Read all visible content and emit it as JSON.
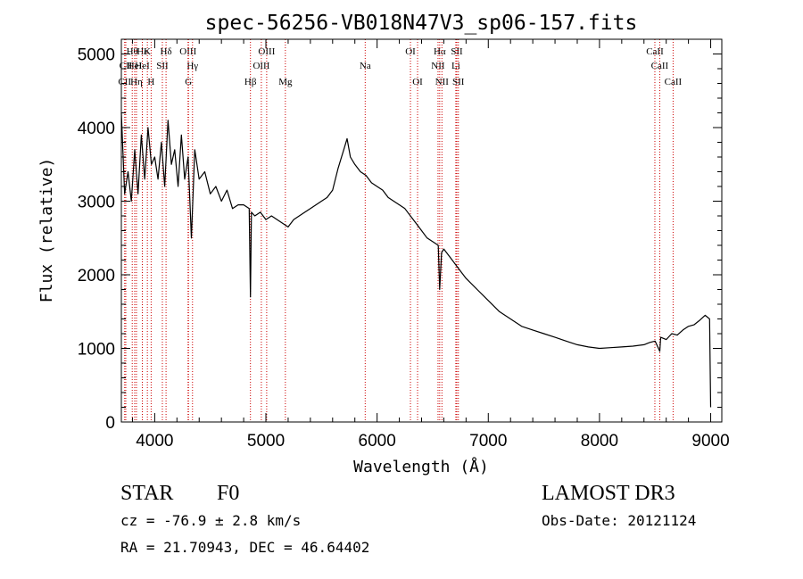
{
  "chart_data": {
    "type": "line",
    "title": "spec-56256-VB018N47V3_sp06-157.fits",
    "xlabel": "Wavelength (Å)",
    "ylabel": "Flux (relative)",
    "xlim": [
      3700,
      9100
    ],
    "ylim": [
      0,
      5200
    ],
    "xticks": [
      4000,
      5000,
      6000,
      7000,
      8000,
      9000
    ],
    "yticks": [
      0,
      1000,
      2000,
      3000,
      4000,
      5000
    ],
    "series": [
      {
        "name": "flux",
        "x": [
          3700,
          3730,
          3760,
          3790,
          3820,
          3850,
          3880,
          3910,
          3940,
          3970,
          4000,
          4030,
          4060,
          4090,
          4120,
          4150,
          4180,
          4210,
          4240,
          4270,
          4300,
          4330,
          4360,
          4400,
          4450,
          4500,
          4550,
          4600,
          4650,
          4700,
          4750,
          4800,
          4850,
          4861,
          4870,
          4900,
          4950,
          5000,
          5050,
          5100,
          5150,
          5200,
          5250,
          5300,
          5350,
          5400,
          5450,
          5500,
          5550,
          5600,
          5650,
          5700,
          5730,
          5760,
          5800,
          5850,
          5900,
          5950,
          6000,
          6050,
          6100,
          6150,
          6200,
          6250,
          6300,
          6350,
          6400,
          6450,
          6500,
          6550,
          6563,
          6580,
          6600,
          6650,
          6700,
          6750,
          6800,
          6900,
          7000,
          7100,
          7200,
          7300,
          7400,
          7500,
          7600,
          7700,
          7800,
          7900,
          8000,
          8100,
          8200,
          8300,
          8400,
          8450,
          8500,
          8542,
          8550,
          8600,
          8650,
          8700,
          8750,
          8800,
          8850,
          8900,
          8950,
          8990,
          9000
        ],
        "y": [
          4200,
          3100,
          3400,
          3000,
          3700,
          3100,
          3900,
          3300,
          4000,
          3500,
          3600,
          3300,
          3800,
          3200,
          4100,
          3500,
          3700,
          3200,
          3900,
          3300,
          3600,
          2500,
          3700,
          3300,
          3400,
          3100,
          3200,
          3000,
          3150,
          2900,
          2950,
          2950,
          2900,
          1700,
          2850,
          2800,
          2850,
          2750,
          2800,
          2750,
          2700,
          2650,
          2750,
          2800,
          2850,
          2900,
          2950,
          3000,
          3050,
          3150,
          3450,
          3700,
          3850,
          3600,
          3500,
          3400,
          3350,
          3250,
          3200,
          3150,
          3050,
          3000,
          2950,
          2900,
          2800,
          2700,
          2600,
          2500,
          2450,
          2400,
          1800,
          2300,
          2350,
          2250,
          2150,
          2050,
          1950,
          1800,
          1650,
          1500,
          1400,
          1300,
          1250,
          1200,
          1150,
          1100,
          1050,
          1020,
          1000,
          1010,
          1020,
          1030,
          1050,
          1080,
          1100,
          960,
          1150,
          1120,
          1200,
          1180,
          1250,
          1300,
          1320,
          1380,
          1450,
          1400,
          200
        ]
      }
    ],
    "line_markers": [
      {
        "label": "CII",
        "x": 3730,
        "row": 3
      },
      {
        "label": "CII",
        "x": 3740,
        "row": 2
      },
      {
        "label": "Hθ",
        "x": 3798,
        "row": 1
      },
      {
        "label": "HeI",
        "x": 3820,
        "row": 2
      },
      {
        "label": "Hη",
        "x": 3836,
        "row": 3
      },
      {
        "label": "Hε",
        "x": 3889,
        "row": 1
      },
      {
        "label": "HeI",
        "x": 3889,
        "row": 2
      },
      {
        "label": "K",
        "x": 3934,
        "row": 1
      },
      {
        "label": "H",
        "x": 3968,
        "row": 3
      },
      {
        "label": "SII",
        "x": 4069,
        "row": 2
      },
      {
        "label": "Hδ",
        "x": 4102,
        "row": 1
      },
      {
        "label": "OIII",
        "x": 4300,
        "row": 1
      },
      {
        "label": "Hγ",
        "x": 4340,
        "row": 2
      },
      {
        "label": "G",
        "x": 4304,
        "row": 3
      },
      {
        "label": "Hβ",
        "x": 4861,
        "row": 3
      },
      {
        "label": "OIII",
        "x": 4959,
        "row": 2
      },
      {
        "label": "OIII",
        "x": 5007,
        "row": 1
      },
      {
        "label": "Mg",
        "x": 5175,
        "row": 3
      },
      {
        "label": "Na",
        "x": 5893,
        "row": 2
      },
      {
        "label": "OI",
        "x": 6300,
        "row": 1
      },
      {
        "label": "OI",
        "x": 6364,
        "row": 3
      },
      {
        "label": "Hα",
        "x": 6563,
        "row": 1
      },
      {
        "label": "NII",
        "x": 6548,
        "row": 2
      },
      {
        "label": "NII",
        "x": 6583,
        "row": 3
      },
      {
        "label": "SII",
        "x": 6717,
        "row": 1
      },
      {
        "label": "Li",
        "x": 6708,
        "row": 2
      },
      {
        "label": "SII",
        "x": 6731,
        "row": 3
      },
      {
        "label": "CaII",
        "x": 8498,
        "row": 1
      },
      {
        "label": "CaII",
        "x": 8542,
        "row": 2
      },
      {
        "label": "CaII",
        "x": 8662,
        "row": 3
      }
    ]
  },
  "info": {
    "object_class": "STAR",
    "subclass": "F0",
    "survey": "LAMOST DR3",
    "redshift": "cz = -76.9 ± 2.8 km/s",
    "obs_date": "Obs-Date: 20121124",
    "coords": "RA =  21.70943, DEC =  46.64402"
  },
  "colors": {
    "line_marker": "#cc0000",
    "spectrum": "#000000",
    "axes": "#000000"
  }
}
